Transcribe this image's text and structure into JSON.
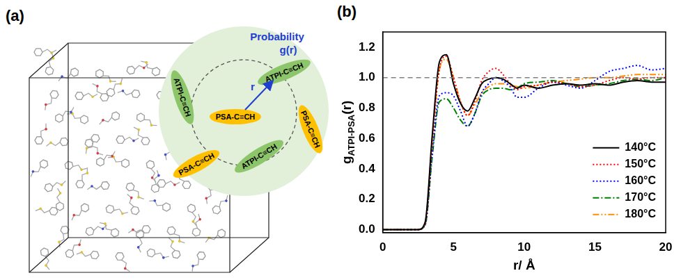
{
  "panel_a": {
    "label": "(a)",
    "probability": "Probability",
    "g_label": "g(r)",
    "r_label": "r",
    "nodes": [
      {
        "label": "PSA-C≡CH",
        "kind": "PSA"
      },
      {
        "label": "ATPI-C≡CH",
        "kind": "ATPI"
      },
      {
        "label": "ATPI-C≡CH",
        "kind": "ATPI"
      },
      {
        "label": "ATPI-C≡CH",
        "kind": "ATPI"
      },
      {
        "label": "PSA-C≡CH",
        "kind": "PSA"
      },
      {
        "label": "PSA-C≡CH",
        "kind": "PSA"
      }
    ]
  },
  "chart_data": {
    "type": "line",
    "panel_label": "(b)",
    "xlabel": "r/ Å",
    "ylabel": {
      "text": "g",
      "subscript": "ATPI-PSA",
      "suffix": "(r)"
    },
    "x": [
      0,
      1,
      2,
      2.5,
      3,
      3.5,
      4,
      4.5,
      5,
      5.5,
      6,
      6.5,
      7,
      7.5,
      8,
      8.5,
      9,
      9.5,
      10,
      11,
      12,
      13,
      14,
      15,
      16,
      17,
      18,
      19,
      20
    ],
    "series": [
      {
        "name": "140°C",
        "color": "#000000",
        "line_style": "solid",
        "values": [
          0,
          0,
          0,
          0,
          0.05,
          0.62,
          1.1,
          1.15,
          0.96,
          0.83,
          0.78,
          0.86,
          0.96,
          0.99,
          1.0,
          0.99,
          0.96,
          0.93,
          0.95,
          0.93,
          0.95,
          0.96,
          0.95,
          0.96,
          0.95,
          0.97,
          0.98,
          0.97,
          0.97
        ]
      },
      {
        "name": "150°C",
        "color": "#ff0000",
        "line_style": "dotted",
        "values": [
          0,
          0,
          0,
          0,
          0.04,
          0.58,
          1.05,
          1.14,
          1.0,
          0.84,
          0.75,
          0.84,
          0.98,
          1.04,
          1.06,
          1.02,
          0.96,
          0.92,
          0.94,
          0.95,
          0.97,
          0.96,
          0.94,
          0.95,
          0.98,
          1.0,
          0.99,
          1.0,
          1.0
        ]
      },
      {
        "name": "160°C",
        "color": "#0000ff",
        "line_style": "dotted",
        "values": [
          0,
          0,
          0,
          0,
          0.03,
          0.5,
          0.88,
          0.9,
          0.88,
          0.78,
          0.68,
          0.76,
          0.9,
          0.96,
          1.0,
          0.98,
          0.94,
          0.87,
          0.87,
          0.93,
          0.97,
          0.95,
          0.93,
          0.98,
          1.04,
          1.06,
          1.08,
          1.05,
          1.06
        ]
      },
      {
        "name": "170°C",
        "color": "#008000",
        "line_style": "dashdot",
        "values": [
          0,
          0,
          0,
          0,
          0.03,
          0.48,
          0.84,
          0.86,
          0.8,
          0.72,
          0.68,
          0.76,
          0.88,
          0.92,
          0.93,
          0.93,
          0.92,
          0.93,
          0.96,
          0.97,
          0.98,
          0.96,
          0.94,
          0.95,
          0.96,
          0.98,
          0.99,
          0.98,
          1.0
        ]
      },
      {
        "name": "180°C",
        "color": "#ff8c00",
        "line_style": "dashdotdot",
        "values": [
          0,
          0,
          0,
          0,
          0.04,
          0.58,
          1.05,
          1.12,
          1.0,
          0.84,
          0.75,
          0.82,
          0.9,
          0.94,
          0.96,
          0.96,
          0.95,
          0.94,
          0.93,
          0.95,
          0.97,
          0.98,
          0.99,
          1.0,
          1.0,
          1.01,
          1.02,
          1.02,
          1.02
        ]
      }
    ],
    "reference_line": {
      "y": 1.0,
      "color": "#808080",
      "line_style": "dashed"
    },
    "xlim": [
      0,
      20
    ],
    "xticks": [
      0,
      5,
      10,
      15,
      20
    ],
    "ylim": [
      -0.02,
      1.3
    ],
    "yticks": [
      {
        "value": 0,
        "label": "0.0"
      },
      0.2,
      0.4,
      0.6,
      0.8,
      {
        "value": 1,
        "label": "1.0"
      },
      1.2
    ],
    "grid": false,
    "legend": "lower right"
  }
}
